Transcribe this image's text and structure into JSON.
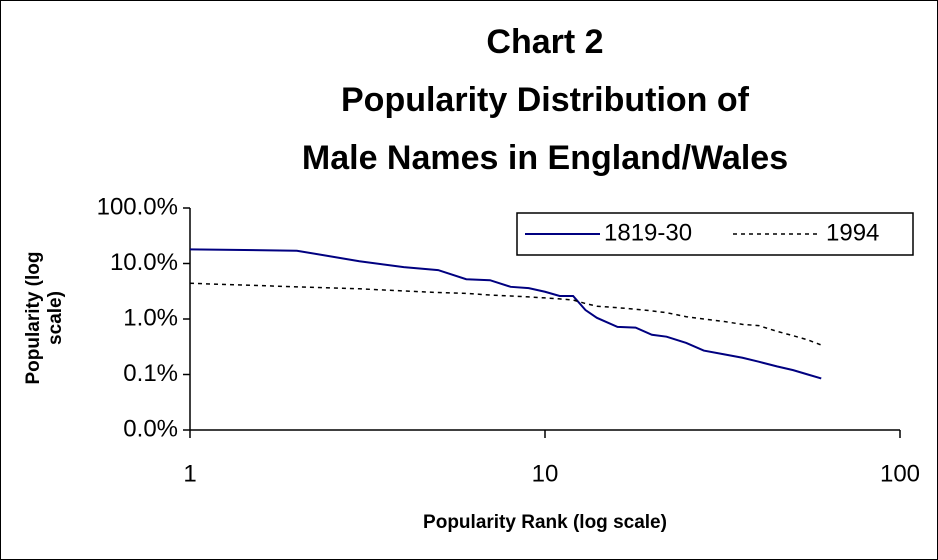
{
  "chart_data": {
    "type": "line",
    "title": [
      "Chart 2",
      "Popularity Distribution of",
      "Male Names in England/Wales"
    ],
    "xlabel": "Popularity Rank (log scale)",
    "ylabel": [
      "Popularity (log",
      "scale)"
    ],
    "xscale": "log",
    "yscale": "log",
    "xlim": [
      1,
      100
    ],
    "xticks": [
      1,
      10,
      100
    ],
    "ylim": [
      0.01,
      100
    ],
    "yticks": [
      {
        "value": 100,
        "label": "100.0%"
      },
      {
        "value": 10,
        "label": "10.0%"
      },
      {
        "value": 1,
        "label": "1.0%"
      },
      {
        "value": 0.1,
        "label": "0.1%"
      },
      {
        "value": 0.01,
        "label": "0.0%"
      }
    ],
    "legend": "top-right",
    "x": [
      1,
      2,
      3,
      4,
      5,
      6,
      7,
      8,
      9,
      10,
      11,
      12,
      13,
      14,
      16,
      18,
      20,
      22,
      25,
      28,
      32,
      36,
      40,
      45,
      50,
      55,
      60
    ],
    "series": [
      {
        "name": "1819-30",
        "color": "#000080",
        "dash": "solid",
        "values": [
          18,
          17,
          11,
          8.6,
          7.6,
          5.2,
          5,
          3.8,
          3.6,
          3.1,
          2.6,
          2.6,
          1.45,
          1.05,
          0.72,
          0.7,
          0.52,
          0.48,
          0.37,
          0.27,
          0.23,
          0.2,
          0.17,
          0.14,
          0.12,
          0.1,
          0.085
        ]
      },
      {
        "name": "1994",
        "color": "#000000",
        "dash": "dashed",
        "values": [
          4.4,
          3.8,
          3.5,
          3.2,
          3.0,
          2.9,
          2.7,
          2.6,
          2.5,
          2.4,
          2.3,
          2.2,
          1.9,
          1.7,
          1.6,
          1.5,
          1.4,
          1.3,
          1.1,
          1.0,
          0.9,
          0.8,
          0.76,
          0.6,
          0.5,
          0.42,
          0.34
        ]
      }
    ]
  }
}
